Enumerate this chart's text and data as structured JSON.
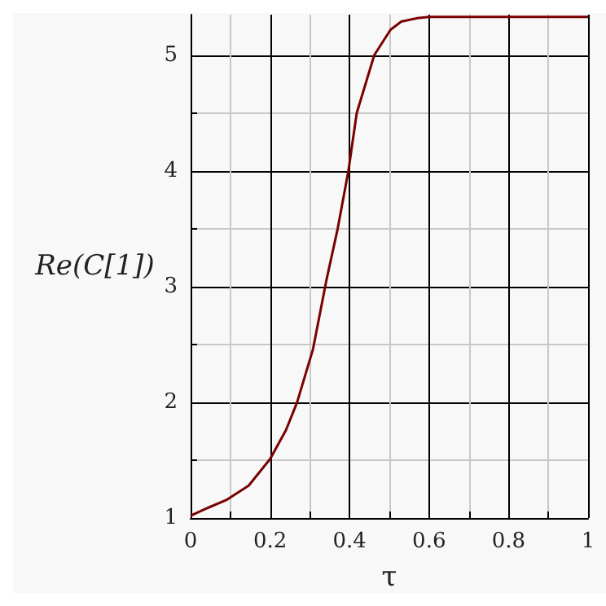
{
  "chart_data": {
    "type": "line",
    "xlabel": "τ",
    "ylabel": "Re(C[1])",
    "grid": true,
    "marker": "none",
    "line_style": "solid",
    "xlim": [
      0,
      1
    ],
    "ylim": [
      1,
      5.35
    ],
    "xticks": [
      0,
      {
        "value": 0.1,
        "label": null
      },
      0.2,
      {
        "value": 0.3,
        "label": null
      },
      0.4,
      {
        "value": 0.5,
        "label": null
      },
      0.6,
      {
        "value": 0.7,
        "label": null
      },
      0.8,
      {
        "value": 0.9,
        "label": null
      },
      1
    ],
    "yticks": [
      1,
      {
        "value": 1.5,
        "label": null
      },
      2,
      {
        "value": 2.5,
        "label": null
      },
      3,
      {
        "value": 3.5,
        "label": null
      },
      4,
      {
        "value": 4.5,
        "label": null
      },
      5
    ],
    "series": [
      {
        "color": "#7a0000",
        "x": [
          0,
          0.038,
          0.092,
          0.146,
          0.2,
          0.24,
          0.268,
          0.308,
          0.342,
          0.37,
          0.397,
          0.418,
          0.462,
          0.503,
          0.53,
          0.571,
          0.6,
          0.8,
          1
        ],
        "values": [
          1.02,
          1.08,
          1.16,
          1.28,
          1.51,
          1.76,
          2.0,
          2.46,
          3.06,
          3.5,
          4.0,
          4.5,
          5.0,
          5.22,
          5.29,
          5.32,
          5.33,
          5.33,
          5.33
        ]
      }
    ]
  }
}
